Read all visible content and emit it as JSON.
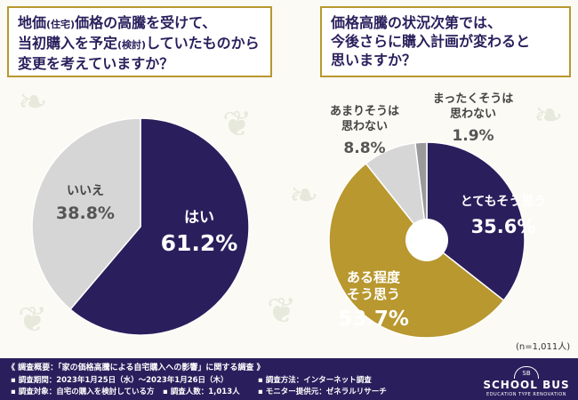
{
  "questions": {
    "q1": {
      "line1_a": "地価",
      "line1_small": "(住宅)",
      "line1_b": "価格の高騰を受けて、",
      "line2_a": "当初購入を予定",
      "line2_small": "(検討)",
      "line2_b": "していたものから",
      "line3": "変更を考えていますか？"
    },
    "q2": {
      "line1": "価格高騰の状況次第では、",
      "line2": "今後さらに購入計画が変わると",
      "line3": "思いますか？"
    }
  },
  "chart_data": [
    {
      "type": "pie",
      "labels": [
        "はい",
        "いいえ"
      ],
      "values": [
        61.2,
        38.8
      ],
      "value_labels": [
        "61.2%",
        "38.8%"
      ],
      "colors": [
        "#2a1f5c",
        "#d6d6d6"
      ]
    },
    {
      "type": "donut",
      "labels": [
        "とてもそう思う",
        "ある程度そう思う",
        "あまりそうは思わない",
        "まったくそうは思わない"
      ],
      "label_lines": [
        [
          "とてもそう思う"
        ],
        [
          "ある程度",
          "そう思う"
        ],
        [
          "あまりそうは",
          "思わない"
        ],
        [
          "まったくそうは",
          "思わない"
        ]
      ],
      "values": [
        35.6,
        53.7,
        8.8,
        1.9
      ],
      "value_labels": [
        "35.6%",
        "53.7%",
        "8.8%",
        "1.9%"
      ],
      "colors": [
        "#2a1f5c",
        "#b8982f",
        "#d6d6d6",
        "#9a9a9a"
      ]
    }
  ],
  "sample_note": "(n=1,011人)",
  "footer": {
    "survey_title": "《 調査概要：「家の価格高騰による自宅購入への影響」に関する調査 》",
    "period": "▪ 調査期間：2023年1月25日（水）〜2023年1月26日（木）",
    "method": "▪ 調査方法：インターネット調査",
    "target": "▪ 調査対象：自宅の購入を検討している方",
    "count": "▪ 調査人数：1,013人",
    "provider": "▪ モニター提供元：ゼネラルリサーチ"
  },
  "logo": {
    "mark": "SB",
    "name": "SCHOOL BUS",
    "tagline": "EDUCATION TYPE RENOVATION"
  }
}
